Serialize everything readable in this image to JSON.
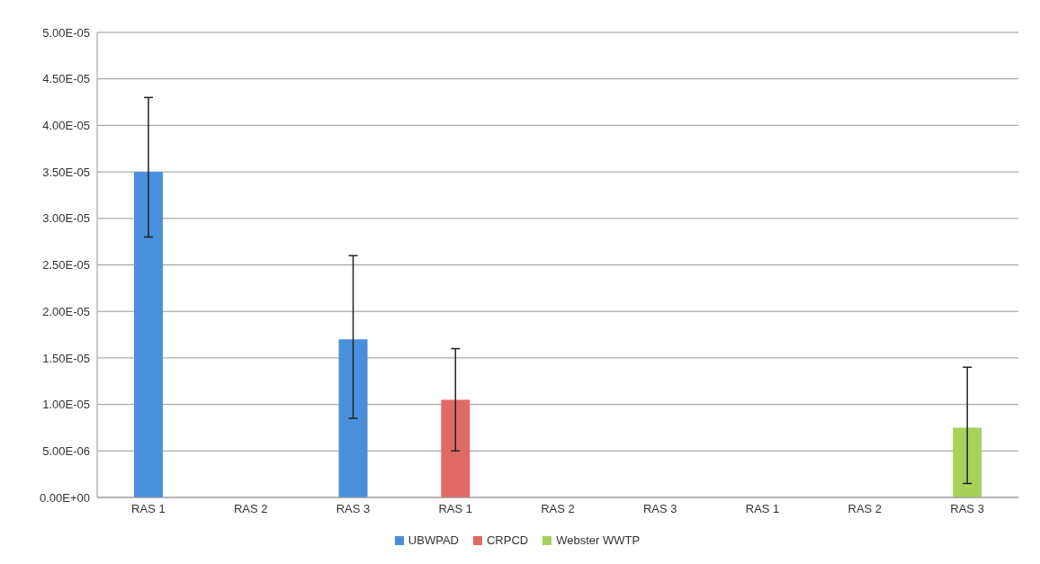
{
  "chart_data": {
    "type": "bar",
    "stacked": true,
    "categories": [
      "RAS 1",
      "RAS 2",
      "RAS 3",
      "RAS 1",
      "RAS 2",
      "RAS 3",
      "RAS 1",
      "RAS 2",
      "RAS 3"
    ],
    "series": [
      {
        "name": "UBWPAD",
        "color": "#4a8fdb",
        "values": [
          3.5e-05,
          null,
          1.7e-05,
          null,
          null,
          null,
          null,
          null,
          null
        ],
        "errors": [
          [
            2.8e-05,
            4.3e-05
          ],
          null,
          [
            8.5e-06,
            2.6e-05
          ],
          null,
          null,
          null,
          null,
          null,
          null
        ]
      },
      {
        "name": "CRPCD",
        "color": "#e06a66",
        "values": [
          null,
          null,
          null,
          1.05e-05,
          null,
          null,
          null,
          null,
          null
        ],
        "errors": [
          null,
          null,
          null,
          [
            5e-06,
            1.6e-05
          ],
          null,
          null,
          null,
          null,
          null
        ]
      },
      {
        "name": "Webster WWTP",
        "color": "#a6d25a",
        "values": [
          null,
          null,
          null,
          null,
          null,
          null,
          null,
          null,
          7.5e-06
        ],
        "errors": [
          null,
          null,
          null,
          null,
          null,
          null,
          null,
          null,
          [
            1.5e-06,
            1.4e-05
          ]
        ]
      }
    ],
    "ylim": [
      0,
      5e-05
    ],
    "yticks": [
      {
        "value": 0,
        "label": "0.00E+00"
      },
      {
        "value": 5e-06,
        "label": "5.00E-06"
      },
      {
        "value": 1e-05,
        "label": "1.00E-05"
      },
      {
        "value": 1.5e-05,
        "label": "1.50E-05"
      },
      {
        "value": 2e-05,
        "label": "2.00E-05"
      },
      {
        "value": 2.5e-05,
        "label": "2.50E-05"
      },
      {
        "value": 3e-05,
        "label": "3.00E-05"
      },
      {
        "value": 3.5e-05,
        "label": "3.50E-05"
      },
      {
        "value": 4e-05,
        "label": "4.00E-05"
      },
      {
        "value": 4.5e-05,
        "label": "4.50E-05"
      },
      {
        "value": 5e-05,
        "label": "5.00E-05"
      }
    ],
    "grid": "y",
    "legend": "bottom"
  }
}
